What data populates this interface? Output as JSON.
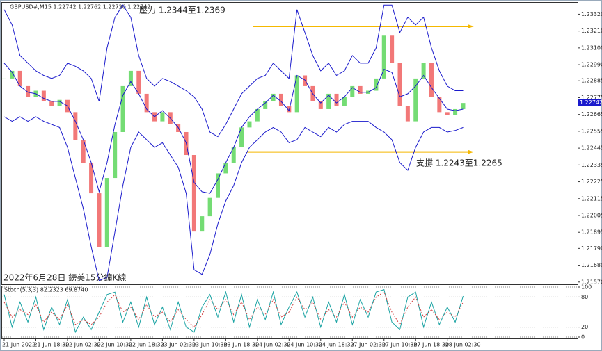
{
  "chart_data": [
    {
      "type": "line",
      "title": "GBPUSD#,M15  1.22742 1.22762 1.22720 1.22742",
      "annotations": [
        "壓力 1.2344至1.2369",
        "支撐 1.2243至1.2265",
        "2022年6月28日 鎊美15分鐘K線"
      ],
      "categories": [
        "21 Jun 2022",
        null,
        null,
        null,
        "21 Jun 18:30",
        null,
        null,
        null,
        "22 Jun 02:30",
        null,
        null,
        null,
        "22 Jun 10:30",
        null,
        null,
        null,
        "22 Jun 18:30",
        null,
        null,
        null,
        "23 Jun 02:30",
        null,
        null,
        null,
        "23 Jun 10:30",
        null,
        null,
        null,
        "23 Jun 18:30",
        null,
        null,
        null,
        "24 Jun 02:30",
        null,
        null,
        null,
        "24 Jun 10:30",
        null,
        null,
        null,
        "24 Jun 18:30",
        null,
        null,
        null,
        "27 Jun 02:30",
        null,
        null,
        null,
        "27 Jun 10:30",
        null,
        null,
        null,
        "27 Jun 18:30",
        null,
        null,
        null,
        "28 Jun 02:30",
        null,
        null
      ],
      "series": [
        {
          "style": "bars",
          "color": "#5cd65c",
          "down_color": "#f06060",
          "values": [
            1.229,
            1.2295,
            1.2285,
            1.2278,
            1.2282,
            1.2275,
            1.2272,
            1.2276,
            1.2268,
            1.225,
            1.2235,
            1.2215,
            1.218,
            1.2225,
            1.2255,
            1.2285,
            1.2295,
            1.228,
            1.2268,
            1.2262,
            1.2268,
            1.226,
            1.2255,
            1.224,
            1.219,
            1.22,
            1.2212,
            1.2228,
            1.2235,
            1.2245,
            1.2258,
            1.2262,
            1.227,
            1.2275,
            1.228,
            1.2272,
            1.2268,
            1.2292,
            1.2285,
            1.2275,
            1.227,
            1.228,
            1.2272,
            1.2278,
            1.2285,
            1.228,
            1.2282,
            1.229,
            1.2318,
            1.23,
            1.2272,
            1.2262,
            1.229,
            1.23,
            1.2278,
            1.2268,
            1.2266,
            1.227,
            1.2274
          ]
        },
        {
          "color": "#1a1acc",
          "values": [
            1.2335,
            1.2325,
            1.2305,
            1.23,
            1.2295,
            1.2292,
            1.229,
            1.2292,
            1.23,
            1.2298,
            1.2295,
            1.229,
            1.2275,
            1.231,
            1.233,
            1.2338,
            1.233,
            1.2305,
            1.229,
            1.2285,
            1.229,
            1.2288,
            1.2285,
            1.2282,
            1.2278,
            1.227,
            1.2255,
            1.2252,
            1.226,
            1.227,
            1.228,
            1.2285,
            1.229,
            1.2292,
            1.23,
            1.2295,
            1.229,
            1.2335,
            1.232,
            1.2305,
            1.2295,
            1.23,
            1.2292,
            1.2295,
            1.2305,
            1.23,
            1.23,
            1.231,
            1.2338,
            1.2338,
            1.232,
            1.233,
            1.2325,
            1.233,
            1.231,
            1.2295,
            1.2285,
            1.2282,
            1.2282
          ]
        },
        {
          "color": "#1a1acc",
          "values": [
            1.23,
            1.2294,
            1.2285,
            1.2281,
            1.228,
            1.2277,
            1.2275,
            1.2275,
            1.2272,
            1.2262,
            1.225,
            1.2235,
            1.2216,
            1.2235,
            1.226,
            1.2279,
            1.2288,
            1.228,
            1.227,
            1.2265,
            1.2269,
            1.2264,
            1.2258,
            1.2248,
            1.2222,
            1.2216,
            1.2215,
            1.2224,
            1.2235,
            1.2245,
            1.2258,
            1.2265,
            1.227,
            1.2274,
            1.2279,
            1.2275,
            1.2269,
            1.2292,
            1.2289,
            1.228,
            1.2274,
            1.2279,
            1.2274,
            1.2278,
            1.2284,
            1.2281,
            1.2281,
            1.2284,
            1.2296,
            1.2294,
            1.2278,
            1.228,
            1.2285,
            1.2292,
            1.2284,
            1.2277,
            1.227,
            1.2269,
            1.227
          ]
        },
        {
          "color": "#1a1acc",
          "values": [
            1.2265,
            1.2262,
            1.2265,
            1.2262,
            1.2265,
            1.2262,
            1.226,
            1.2258,
            1.2245,
            1.2225,
            1.2205,
            1.218,
            1.2158,
            1.216,
            1.219,
            1.222,
            1.2245,
            1.2255,
            1.225,
            1.2245,
            1.2248,
            1.224,
            1.2232,
            1.2215,
            1.2165,
            1.2162,
            1.2175,
            1.2195,
            1.221,
            1.222,
            1.2235,
            1.2245,
            1.225,
            1.2255,
            1.2258,
            1.2255,
            1.2248,
            1.225,
            1.2258,
            1.2255,
            1.2252,
            1.2258,
            1.2255,
            1.226,
            1.2262,
            1.2262,
            1.2262,
            1.2258,
            1.2255,
            1.225,
            1.2235,
            1.223,
            1.2245,
            1.2255,
            1.2258,
            1.2258,
            1.2255,
            1.2256,
            1.2258
          ]
        }
      ],
      "levels": [
        1.2324,
        1.2242
      ],
      "level_color": "#f5b800",
      "current_price": 1.22742,
      "ylim": [
        1.2156,
        1.2339
      ],
      "yticks": [
        {
          "value": 1.2332,
          "label": "1.23320"
        },
        {
          "value": 1.2321,
          "label": "1.23210"
        },
        {
          "value": 1.231,
          "label": "1.23100"
        },
        {
          "value": 1.2299,
          "label": "1.22990"
        },
        1.22885,
        1.22775,
        1.22665,
        1.22555,
        1.22445,
        1.22335,
        1.22225,
        1.22115,
        1.22005,
        1.21895,
        {
          "value": 1.2179,
          "label": "1.21790"
        },
        {
          "value": 1.2168,
          "label": "1.21680"
        },
        {
          "value": 1.2157,
          "label": "1.21570"
        }
      ],
      "grid": false
    },
    {
      "type": "line",
      "title": "Stoch(5,3,3) 82.2323 69.8740",
      "series": [
        {
          "color": "#1aa3a3",
          "values": [
            85,
            20,
            70,
            30,
            80,
            15,
            60,
            25,
            75,
            10,
            40,
            15,
            50,
            85,
            90,
            30,
            70,
            20,
            80,
            25,
            60,
            15,
            70,
            20,
            10,
            60,
            85,
            40,
            90,
            30,
            85,
            20,
            75,
            35,
            90,
            25,
            60,
            90,
            40,
            80,
            20,
            70,
            30,
            85,
            25,
            75,
            40,
            90,
            95,
            30,
            15,
            80,
            90,
            20,
            70,
            25,
            60,
            30,
            82
          ]
        },
        {
          "color": "#d04040",
          "dash": true,
          "values": [
            70,
            40,
            55,
            45,
            65,
            30,
            50,
            35,
            65,
            25,
            35,
            25,
            40,
            70,
            85,
            50,
            60,
            35,
            65,
            40,
            50,
            30,
            55,
            35,
            20,
            45,
            75,
            55,
            75,
            45,
            70,
            35,
            60,
            45,
            75,
            40,
            50,
            80,
            55,
            70,
            35,
            55,
            40,
            70,
            40,
            60,
            50,
            80,
            90,
            50,
            25,
            60,
            80,
            40,
            55,
            35,
            50,
            40,
            70
          ]
        }
      ],
      "ylim": [
        0,
        100
      ],
      "yticks": [
        100,
        80,
        20,
        0
      ],
      "grid": true
    }
  ]
}
